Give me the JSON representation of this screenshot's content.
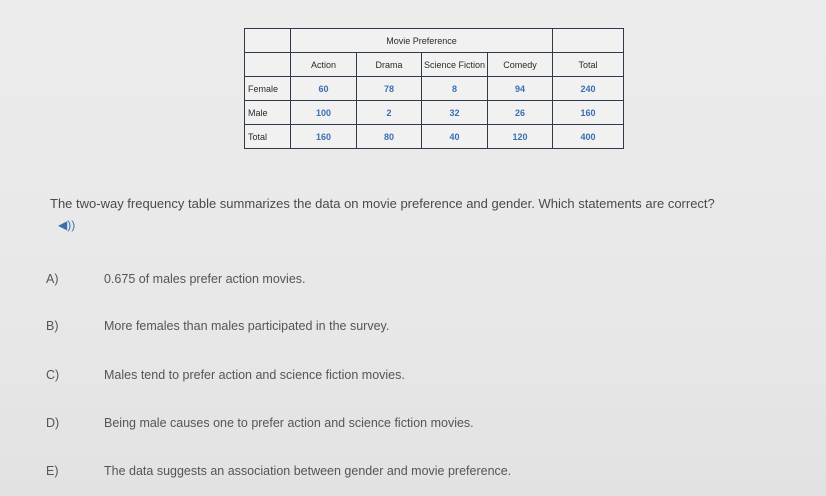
{
  "table": {
    "group_header": "Movie Preference",
    "columns": [
      "Action",
      "Drama",
      "Science Fiction",
      "Comedy",
      "Total"
    ],
    "rows": [
      {
        "label": "Female",
        "values": [
          "60",
          "78",
          "8",
          "94",
          "240"
        ]
      },
      {
        "label": "Male",
        "values": [
          "100",
          "2",
          "32",
          "26",
          "160"
        ]
      },
      {
        "label": "Total",
        "values": [
          "160",
          "80",
          "40",
          "120",
          "400"
        ]
      }
    ]
  },
  "question": "The two-way frequency table summarizes the data on movie preference and gender. Which statements are correct?",
  "audio_icon": "speaker-icon",
  "options": [
    {
      "letter": "A)",
      "text": "0.675 of males prefer action movies."
    },
    {
      "letter": "B)",
      "text": "More females than males participated in the survey."
    },
    {
      "letter": "C)",
      "text": "Males tend to prefer action and science fiction movies."
    },
    {
      "letter": "D)",
      "text": "Being male causes one to prefer action and science fiction movies."
    },
    {
      "letter": "E)",
      "text": "The data suggests an association between gender and movie preference."
    }
  ]
}
